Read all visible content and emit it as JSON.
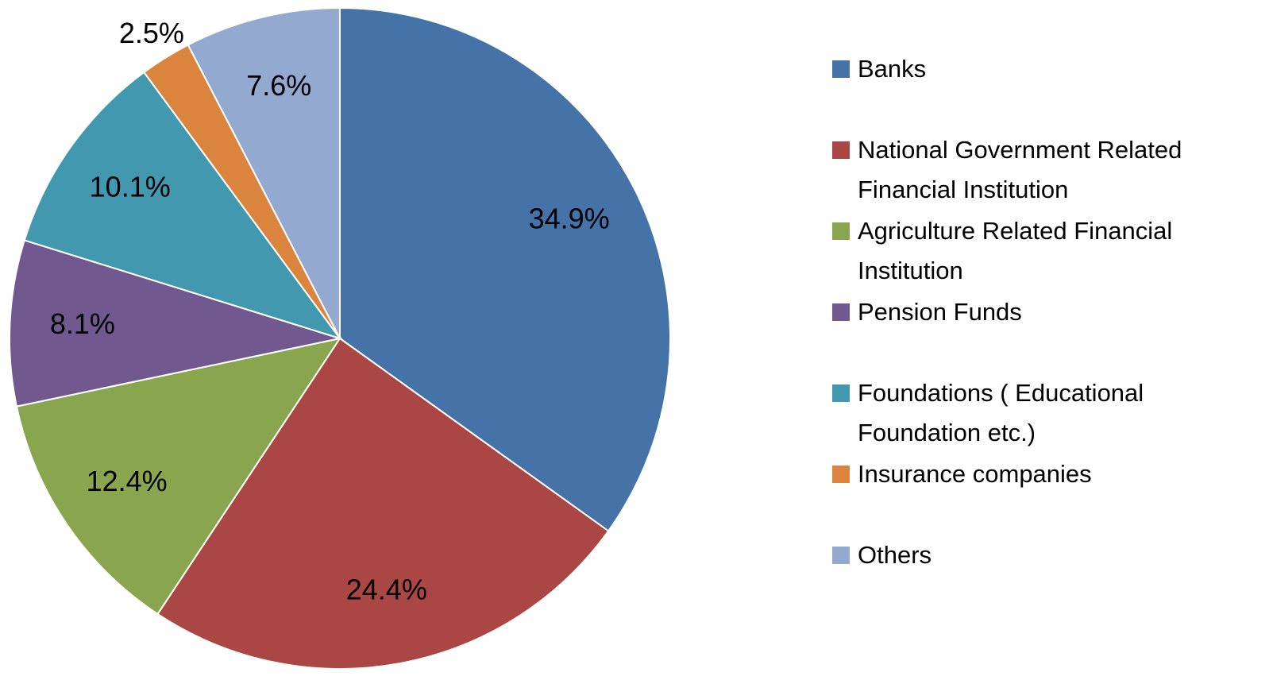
{
  "chart_data": {
    "type": "pie",
    "categories": [
      "Banks",
      "National Government Related Financial Institution",
      "Agriculture Related Financial Institution",
      "Pension Funds",
      "Foundations ( Educational Foundation etc.)",
      "Insurance companies",
      "Others"
    ],
    "values": [
      34.9,
      24.4,
      12.4,
      8.1,
      10.1,
      2.5,
      7.6
    ],
    "value_labels": [
      "34.9%",
      "24.4%",
      "12.4%",
      "8.1%",
      "10.1%",
      "2.5%",
      "7.6%"
    ],
    "colors": [
      "#4572a7",
      "#aa4643",
      "#89a54e",
      "#71588f",
      "#4198af",
      "#db843d",
      "#93a9cf"
    ],
    "legend": "right"
  }
}
